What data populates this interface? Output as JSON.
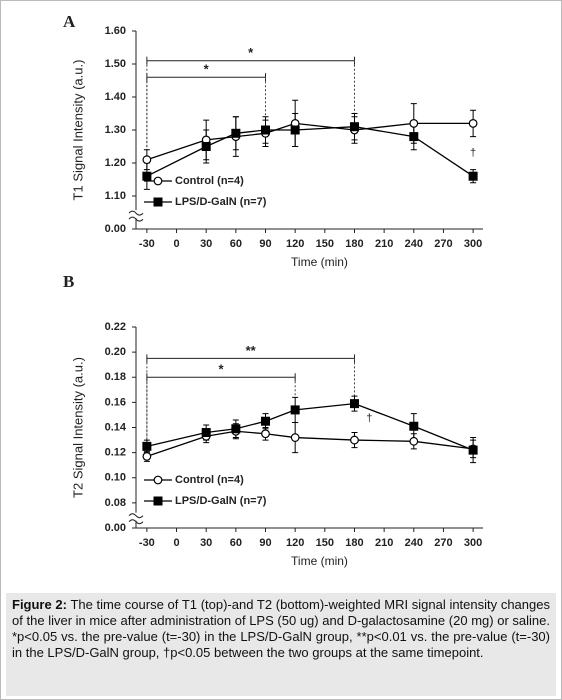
{
  "chart_data": [
    {
      "type": "line",
      "panel": "A",
      "ylabel": "T1 Signal Intensity (a.u.)",
      "xlabel": "Time (min)",
      "x": [
        -30,
        30,
        60,
        90,
        120,
        180,
        240,
        300
      ],
      "xlim": [
        -41,
        310
      ],
      "xticks": [
        -30,
        0,
        30,
        60,
        90,
        120,
        150,
        180,
        210,
        240,
        270,
        300
      ],
      "ylim": [
        0,
        1.6
      ],
      "yticks": [
        {
          "value": 0,
          "label": "0.00"
        },
        {
          "value": 1.1,
          "label": "1.10"
        },
        {
          "value": 1.2,
          "label": "1.20"
        },
        {
          "value": 1.3,
          "label": "1.30"
        },
        {
          "value": 1.4,
          "label": "1.40"
        },
        {
          "value": 1.5,
          "label": "1.50"
        },
        {
          "value": 1.6,
          "label": "1.60"
        }
      ],
      "y_break": true,
      "legend": "lower left",
      "series": [
        {
          "name": "Control (n=4)",
          "color": "#000000",
          "marker": "circle",
          "fill": "#ffffff",
          "values": [
            1.21,
            1.27,
            1.28,
            1.29,
            1.32,
            1.3,
            1.32,
            1.32
          ],
          "errors": [
            0.03,
            0.06,
            0.06,
            0.04,
            0.07,
            0.04,
            0.06,
            0.04
          ]
        },
        {
          "name": "LPS/D-GalN (n=7)",
          "color": "#000000",
          "marker": "square",
          "fill": "#000000",
          "values": [
            1.16,
            1.25,
            1.29,
            1.3,
            1.3,
            1.31,
            1.28,
            1.16
          ],
          "errors": [
            0.04,
            0.05,
            0.05,
            0.04,
            0.05,
            0.04,
            0.04,
            0.02
          ]
        }
      ],
      "brackets": [
        {
          "text": "*",
          "x": [
            -30,
            90
          ],
          "y": 1.46
        },
        {
          "text": "*",
          "x": [
            -30,
            180
          ],
          "y": 1.51
        }
      ],
      "annotations": [
        {
          "text": "†",
          "x": 300,
          "y": 1.23
        }
      ]
    },
    {
      "type": "line",
      "panel": "B",
      "ylabel": "T2 Signal Intensity (a.u.)",
      "xlabel": "Time (min)",
      "x": [
        -30,
        30,
        60,
        90,
        120,
        180,
        240,
        300
      ],
      "xlim": [
        -41,
        310
      ],
      "xticks": [
        -30,
        0,
        30,
        60,
        90,
        120,
        150,
        180,
        210,
        240,
        270,
        300
      ],
      "ylim": [
        0,
        0.22
      ],
      "yticks": [
        {
          "value": 0,
          "label": "0.00"
        },
        {
          "value": 0.08,
          "label": "0.08"
        },
        {
          "value": 0.1,
          "label": "0.10"
        },
        {
          "value": 0.12,
          "label": "0.12"
        },
        {
          "value": 0.14,
          "label": "0.14"
        },
        {
          "value": 0.16,
          "label": "0.16"
        },
        {
          "value": 0.18,
          "label": "0.18"
        },
        {
          "value": 0.2,
          "label": "0.20"
        },
        {
          "value": 0.22,
          "label": "0.22"
        }
      ],
      "y_break": true,
      "legend": "lower left",
      "series": [
        {
          "name": "Control (n=4)",
          "color": "#000000",
          "marker": "circle",
          "fill": "#ffffff",
          "values": [
            0.117,
            0.133,
            0.137,
            0.135,
            0.132,
            0.13,
            0.129,
            0.123
          ],
          "errors": [
            0.004,
            0.005,
            0.006,
            0.005,
            0.012,
            0.006,
            0.006,
            0.007
          ]
        },
        {
          "name": "LPS/D-GalN (n=7)",
          "color": "#000000",
          "marker": "square",
          "fill": "#000000",
          "values": [
            0.125,
            0.136,
            0.139,
            0.145,
            0.154,
            0.159,
            0.141,
            0.122
          ],
          "errors": [
            0.005,
            0.006,
            0.007,
            0.006,
            0.01,
            0.006,
            0.01,
            0.01
          ]
        }
      ],
      "brackets": [
        {
          "text": "*",
          "x": [
            -30,
            120
          ],
          "y": 0.18
        },
        {
          "text": "**",
          "x": [
            -30,
            180
          ],
          "y": 0.195
        }
      ],
      "annotations": [
        {
          "text": "†",
          "x": 195,
          "y": 0.147
        }
      ]
    }
  ],
  "caption": {
    "label": "Figure 2:",
    "text": "The time course of T1 (top)-and T2 (bottom)-weighted MRI signal intensity changes of the liver in mice after administration of LPS (50 ug) and D-galactosamine (20 mg) or saline. *p<0.05 vs. the pre-value (t=-30) in the LPS/D-GalN group, **p<0.01 vs. the pre-value (t=-30) in the LPS/D-GalN group, †p<0.05 between the two groups at the same timepoint."
  }
}
